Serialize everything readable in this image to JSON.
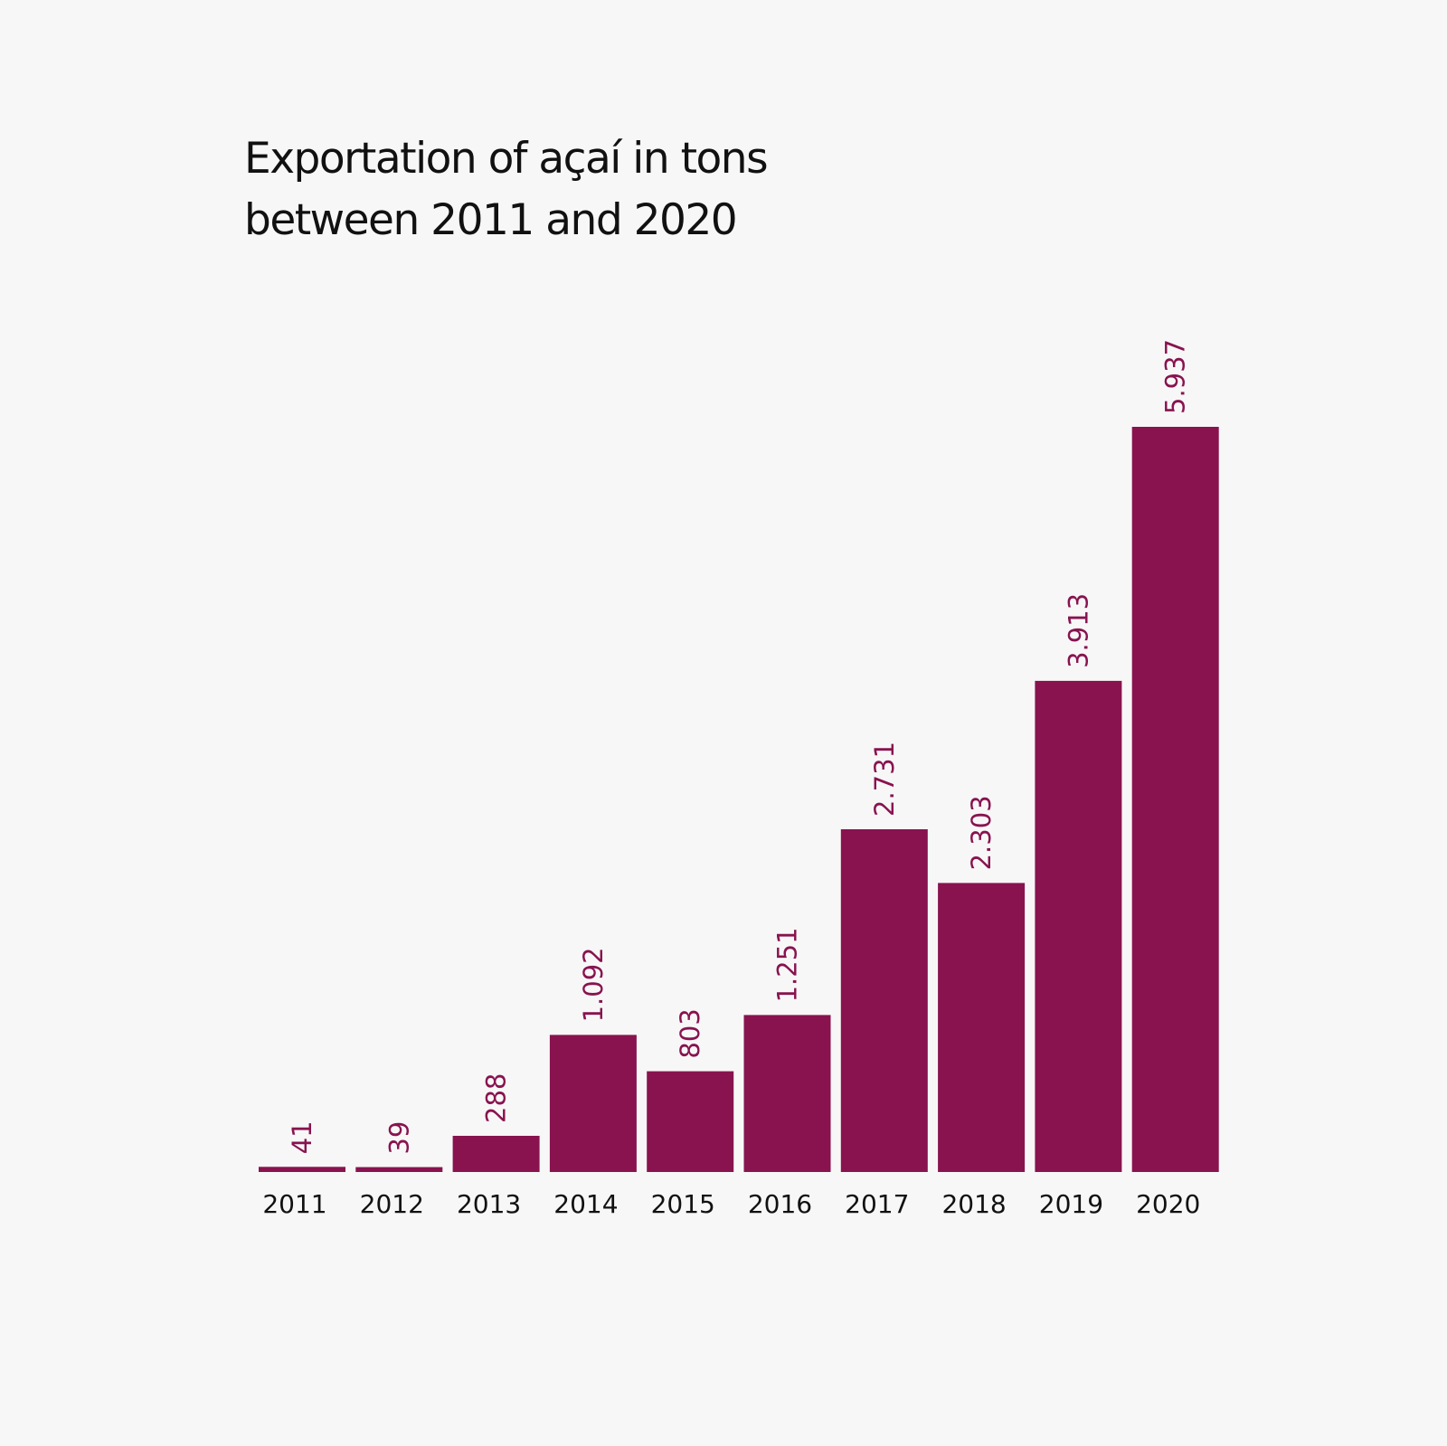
{
  "chart_data": {
    "type": "bar",
    "title_lines": [
      "Exportation of açaí in tons",
      "between 2011 and 2020"
    ],
    "categories": [
      "2011",
      "2012",
      "2013",
      "2014",
      "2015",
      "2016",
      "2017",
      "2018",
      "2019",
      "2020"
    ],
    "values": [
      41,
      39,
      288,
      1092,
      803,
      1251,
      2731,
      2303,
      3913,
      5937
    ],
    "value_labels": [
      "41",
      "39",
      "288",
      "1.092",
      "803",
      "1.251",
      "2.731",
      "2.303",
      "3.913",
      "5.937"
    ],
    "xlabel": "",
    "ylabel": "",
    "ylim": [
      0,
      5937
    ],
    "grid": false,
    "legend": "none",
    "colors": {
      "bar": "#88134f",
      "data_label": "#88134f",
      "text": "#111111",
      "background": "#f7f7f7"
    }
  }
}
